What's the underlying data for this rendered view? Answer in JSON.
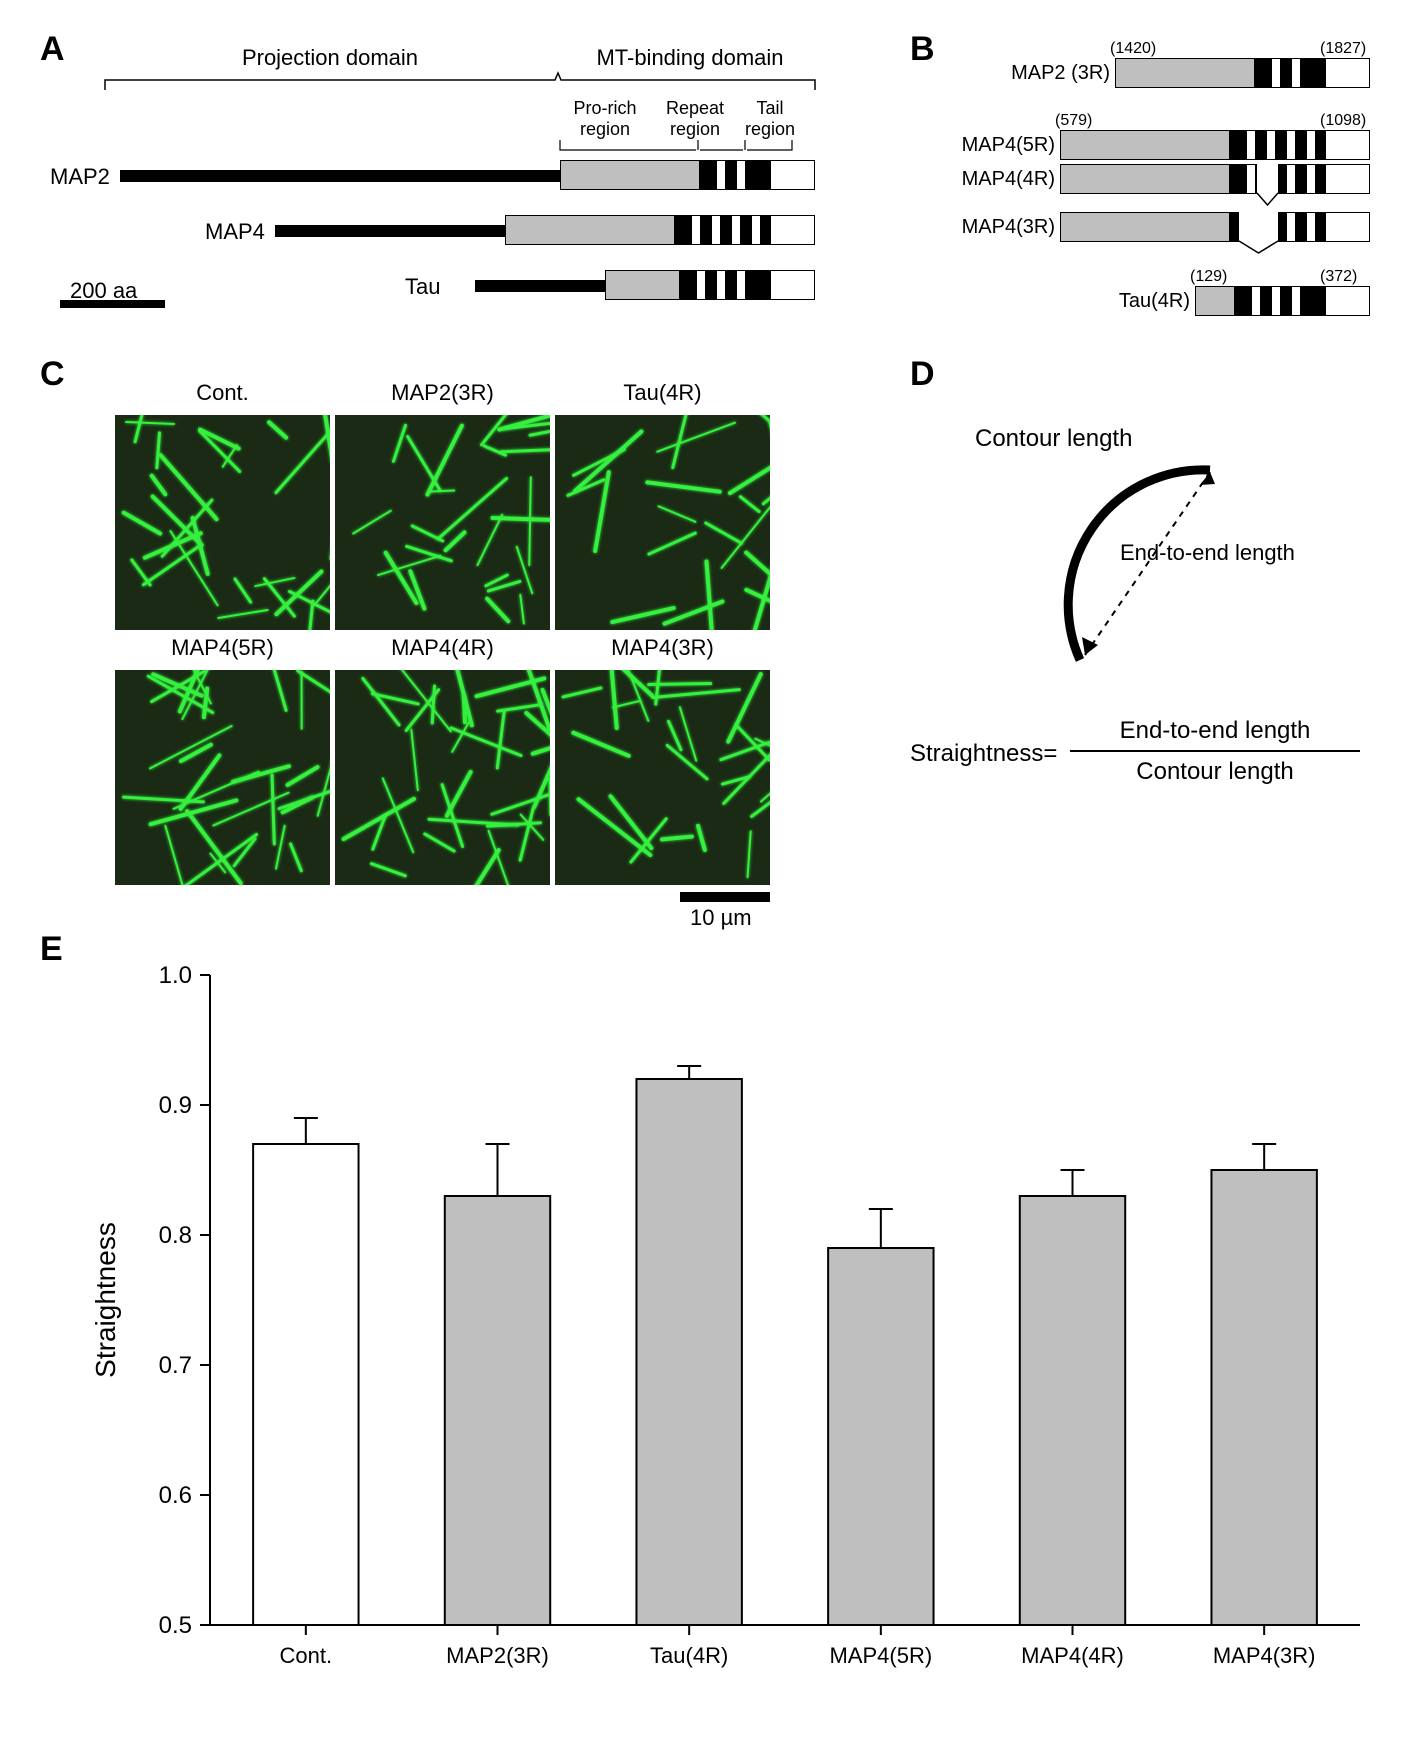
{
  "panel_labels": {
    "A": "A",
    "B": "B",
    "C": "C",
    "D": "D",
    "E": "E"
  },
  "panelA": {
    "projection_label": "Projection domain",
    "mt_label": "MT-binding domain",
    "pro_label": "Pro-rich\nregion",
    "repeat_label": "Repeat\nregion",
    "tail_label": "Tail\nregion",
    "scale_label": "200 aa",
    "proteins": [
      {
        "name": "MAP2",
        "thin_len": 440,
        "pro_len": 140,
        "repeat_len": 70,
        "tail_len": 45,
        "stripes": [
          16,
          36
        ]
      },
      {
        "name": "MAP4",
        "thin_len": 230,
        "pro_len": 170,
        "repeat_len": 95,
        "tail_len": 45,
        "stripes": [
          16,
          36,
          56,
          76
        ]
      },
      {
        "name": "Tau",
        "thin_len": 130,
        "pro_len": 75,
        "repeat_len": 90,
        "tail_len": 45,
        "stripes": [
          16,
          36,
          56
        ]
      }
    ],
    "colors": {
      "thin": "#000000",
      "pro": "#bfbfbf",
      "repeat": "#000000",
      "tail": "#ffffff",
      "stripe": "#ffffff"
    }
  },
  "panelB": {
    "fragments": [
      {
        "name": "MAP2 (3R)",
        "start": "(1420)",
        "end": "(1827)",
        "pro": 140,
        "repeat": 70,
        "tail": 45,
        "stripes": [
          16,
          36
        ],
        "splice": null
      },
      {
        "name": "MAP4(5R)",
        "start": "(579)",
        "end": "(1098)",
        "pro": 170,
        "repeat": 95,
        "tail": 45,
        "stripes": [
          16,
          36,
          56,
          76
        ],
        "splice": null
      },
      {
        "name": "MAP4(4R)",
        "start": "",
        "end": "",
        "pro": 170,
        "repeat": 95,
        "tail": 45,
        "stripes": [
          16,
          56,
          76
        ],
        "splice": {
          "from": 26,
          "to": 47
        }
      },
      {
        "name": "MAP4(3R)",
        "start": "",
        "end": "",
        "pro": 170,
        "repeat": 95,
        "tail": 45,
        "stripes": [
          56,
          76
        ],
        "splice": {
          "from": 8,
          "to": 47
        }
      },
      {
        "name": "Tau(4R)",
        "start": "(129)",
        "end": "(372)",
        "pro": 40,
        "repeat": 90,
        "tail": 45,
        "stripes": [
          16,
          36,
          56
        ]
      }
    ]
  },
  "panelC": {
    "titles": [
      "Cont.",
      "MAP2(3R)",
      "Tau(4R)",
      "MAP4(5R)",
      "MAP4(4R)",
      "MAP4(3R)"
    ],
    "scale": "10 µm",
    "bg": "#1a2a15",
    "fiber_color": "#35f03e"
  },
  "panelD": {
    "contour": "Contour length",
    "end": "End-to-end length",
    "formula_lhs": "Straightness=",
    "formula_top": "End-to-end length",
    "formula_bot": "Contour length"
  },
  "panelE": {
    "ylabel": "Straightness",
    "ylim": [
      0.5,
      1.0
    ],
    "yticks": [
      0.5,
      0.6,
      0.7,
      0.8,
      0.9,
      1.0
    ],
    "categories": [
      "Cont.",
      "MAP2(3R)",
      "Tau(4R)",
      "MAP4(5R)",
      "MAP4(4R)",
      "MAP4(3R)"
    ],
    "values": [
      0.87,
      0.83,
      0.92,
      0.79,
      0.83,
      0.85
    ],
    "errors": [
      0.02,
      0.04,
      0.01,
      0.03,
      0.02,
      0.02
    ],
    "bar_colors": [
      "#ffffff",
      "#bfbfbf",
      "#bfbfbf",
      "#bfbfbf",
      "#bfbfbf",
      "#bfbfbf"
    ],
    "bar_border": "#000000",
    "axis_color": "#000000",
    "tick_fontsize": 24,
    "label_fontsize": 28,
    "cat_fontsize": 22,
    "bar_width": 0.55
  }
}
